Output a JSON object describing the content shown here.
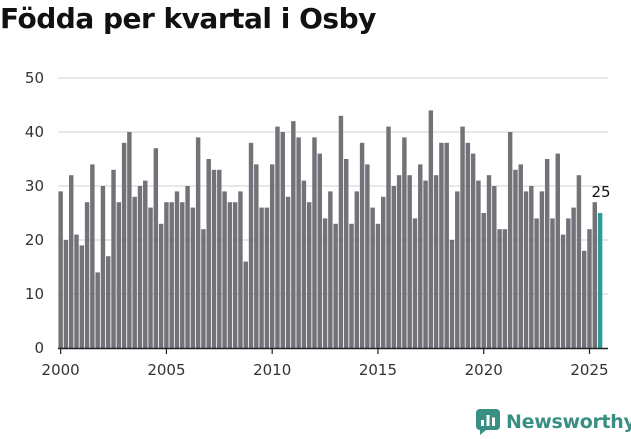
{
  "chart_data": {
    "type": "bar",
    "title": "Födda per kvartal i Osby",
    "xlabel": "",
    "ylabel": "",
    "ylim": [
      0,
      50
    ],
    "yticks": [
      0,
      10,
      20,
      30,
      40,
      50
    ],
    "xlim": [
      1999.875,
      2025.875
    ],
    "xticks": [
      2000,
      2005,
      2010,
      2015,
      2020,
      2025
    ],
    "start_year": 2000,
    "annotation": "25",
    "values": [
      29,
      20,
      32,
      21,
      19,
      27,
      34,
      14,
      30,
      17,
      33,
      27,
      38,
      40,
      28,
      30,
      31,
      26,
      37,
      23,
      27,
      27,
      29,
      27,
      30,
      26,
      39,
      22,
      35,
      33,
      33,
      29,
      27,
      27,
      29,
      16,
      38,
      34,
      26,
      26,
      34,
      41,
      40,
      28,
      42,
      39,
      31,
      27,
      39,
      36,
      24,
      29,
      23,
      43,
      35,
      23,
      29,
      38,
      34,
      26,
      23,
      28,
      41,
      30,
      32,
      39,
      32,
      24,
      34,
      31,
      44,
      32,
      38,
      38,
      20,
      29,
      41,
      38,
      36,
      31,
      25,
      32,
      30,
      22,
      22,
      40,
      33,
      34,
      29,
      30,
      24,
      29,
      35,
      24,
      36,
      21,
      24,
      26,
      32,
      18,
      22,
      27,
      25
    ],
    "colors": {
      "bar": "#737278",
      "highlight": "#2a9d94",
      "grid": "#d0d0d0",
      "text": "#333333",
      "axis": "#222222"
    }
  },
  "brand": {
    "name": "Newsworthy",
    "icon": "bar-chart-logo-icon",
    "color": "#3a8f83"
  }
}
